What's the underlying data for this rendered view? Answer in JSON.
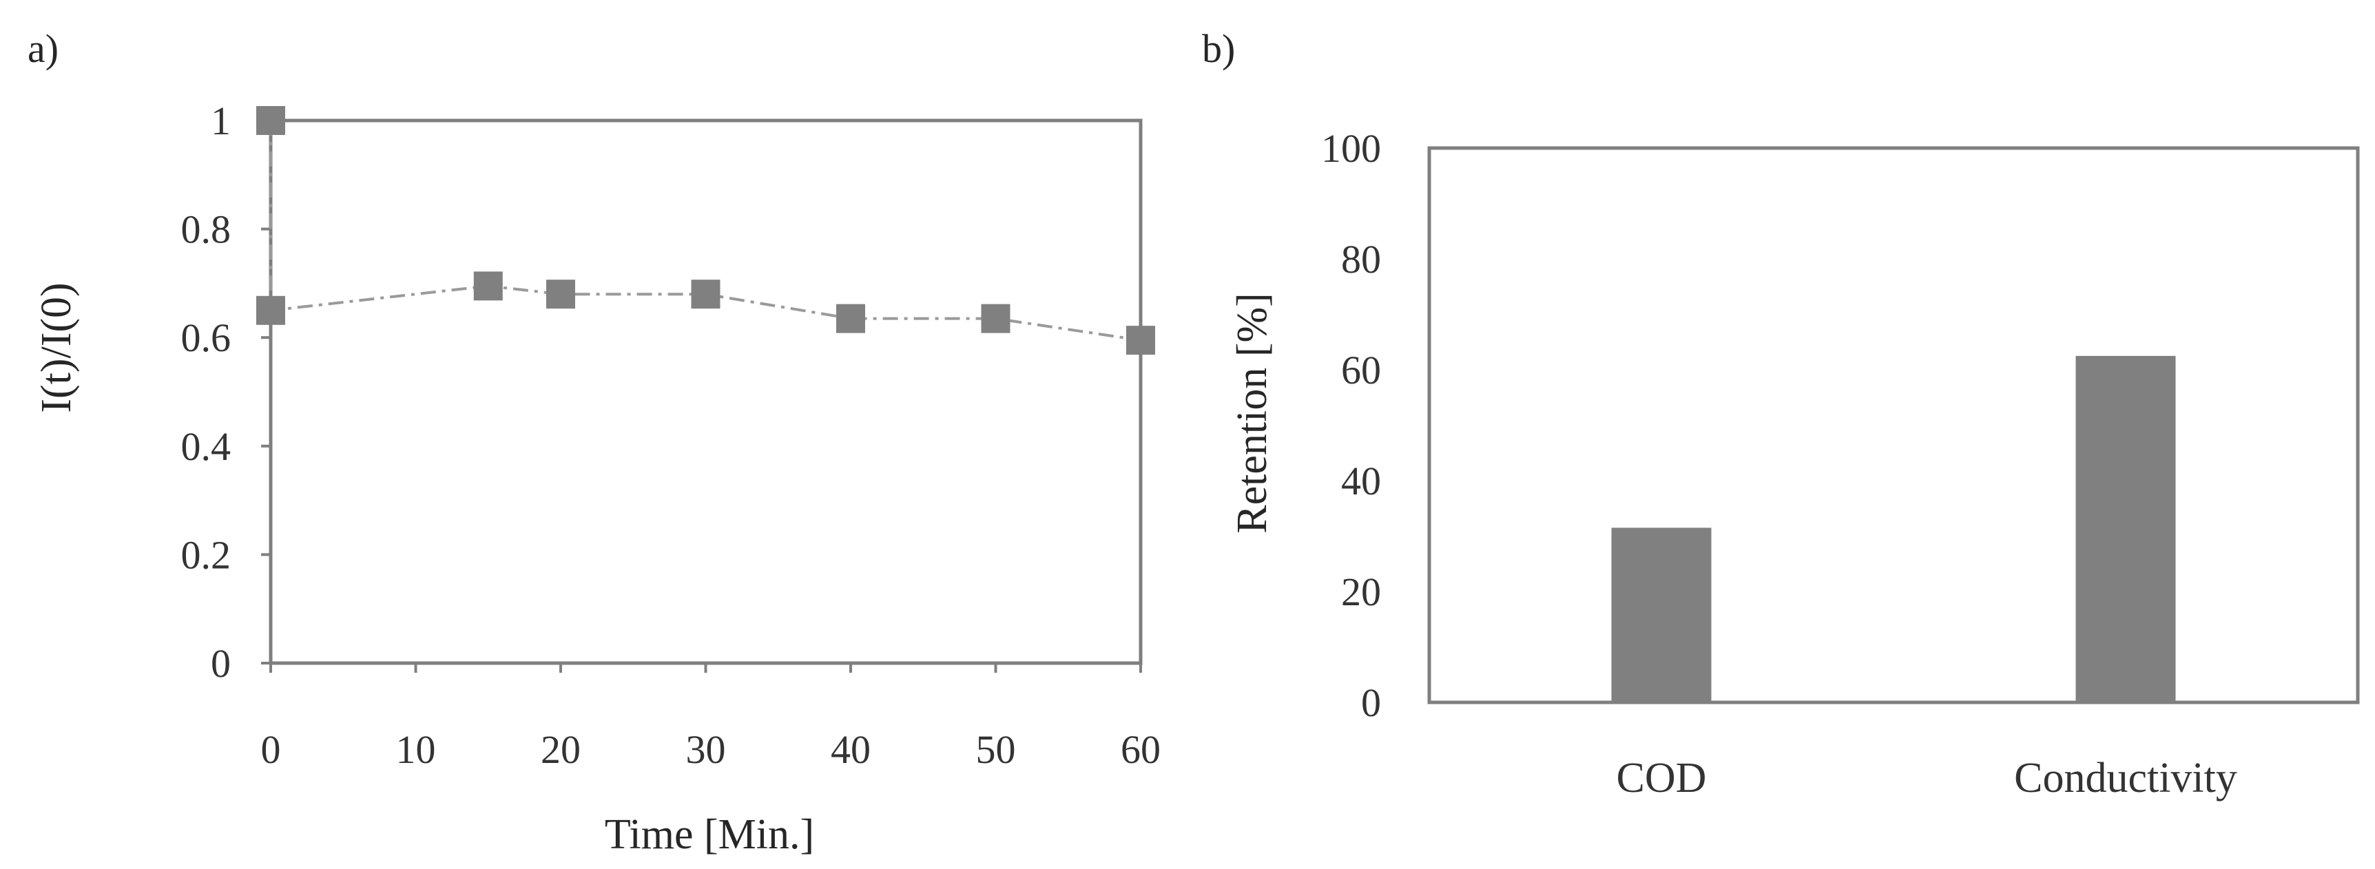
{
  "colors": {
    "marker": "#808080",
    "bar": "#808080",
    "axis": "#7f7f7f",
    "text": "#333333"
  },
  "chart_data": [
    {
      "panel_label": "a)",
      "type": "line",
      "title": "",
      "xlabel": "Time [Min.]",
      "ylabel": "I(t)/I(0)",
      "xlim": [
        0,
        60
      ],
      "ylim": [
        0,
        1
      ],
      "xticks": [
        "0",
        "10",
        "20",
        "30",
        "40",
        "50",
        "60"
      ],
      "yticks": [
        "0",
        "0.2",
        "0.4",
        "0.6",
        "0.8",
        "1"
      ],
      "grid": false,
      "series": [
        {
          "line_style": "dash-dot",
          "marker": "square",
          "points": [
            {
              "x": 0,
              "y": 1.0
            },
            {
              "x": 0,
              "y": 0.65
            },
            {
              "x": 15,
              "y": 0.695
            },
            {
              "x": 20,
              "y": 0.68
            },
            {
              "x": 30,
              "y": 0.68
            },
            {
              "x": 40,
              "y": 0.635
            },
            {
              "x": 50,
              "y": 0.635
            },
            {
              "x": 60,
              "y": 0.595
            }
          ]
        }
      ]
    },
    {
      "panel_label": "b)",
      "type": "bar",
      "title": "",
      "xlabel": "",
      "ylabel": "Retention [%]",
      "ylim": [
        0,
        100
      ],
      "yticks": [
        "0",
        "20",
        "40",
        "60",
        "80",
        "100"
      ],
      "grid": false,
      "categories": [
        "COD",
        "Conductivity"
      ],
      "values": [
        31.5,
        62.5
      ]
    }
  ]
}
